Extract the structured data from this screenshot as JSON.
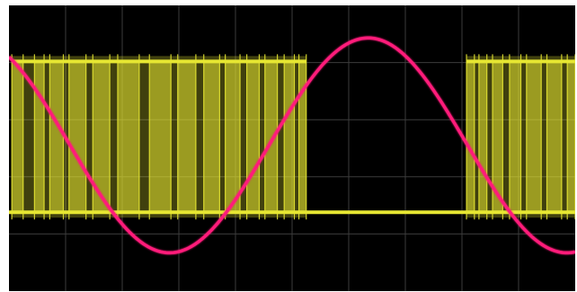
{
  "display": {
    "background_color": "#000000",
    "grid_color": "#3c3c3c",
    "grid": true,
    "divisions": {
      "horizontal": 10,
      "vertical": 5
    }
  },
  "chart_data": {
    "type": "line",
    "title": "",
    "xlabel": "",
    "ylabel": "",
    "xlim": [
      0,
      10
    ],
    "ylim": [
      0,
      5
    ],
    "series": [
      {
        "color": "#ff1a7a",
        "kind": "sine",
        "amplitude": 1.88,
        "offset": 2.55,
        "period": 7.02,
        "phase_zero_crossing_x": 1.08,
        "polarity": "inverted"
      },
      {
        "color": "#e6e632",
        "kind": "pwm",
        "high_level": 4.02,
        "low_level": 1.38,
        "active_intervals": [
          [
            0.05,
            5.25
          ],
          [
            8.08,
            10.0
          ]
        ],
        "edges": [
          0.05,
          0.25,
          0.45,
          0.62,
          0.72,
          0.96,
          1.06,
          1.36,
          1.48,
          1.78,
          1.92,
          2.3,
          2.48,
          2.86,
          2.98,
          3.3,
          3.44,
          3.72,
          3.82,
          4.08,
          4.2,
          4.42,
          4.52,
          4.74,
          4.86,
          5.04,
          5.12,
          5.25,
          8.08,
          8.22,
          8.3,
          8.44,
          8.54,
          8.72,
          8.84,
          9.04,
          9.14,
          9.4,
          9.5,
          9.76,
          9.86,
          10.0
        ]
      }
    ]
  }
}
